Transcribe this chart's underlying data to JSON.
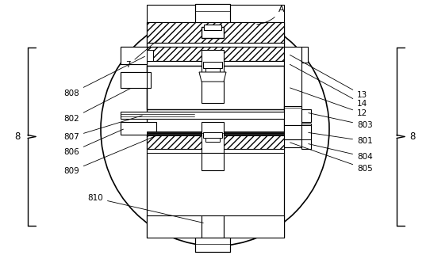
{
  "bg_color": "#ffffff",
  "line_color": "#000000",
  "fig_width": 5.42,
  "fig_height": 3.27,
  "dpi": 100
}
